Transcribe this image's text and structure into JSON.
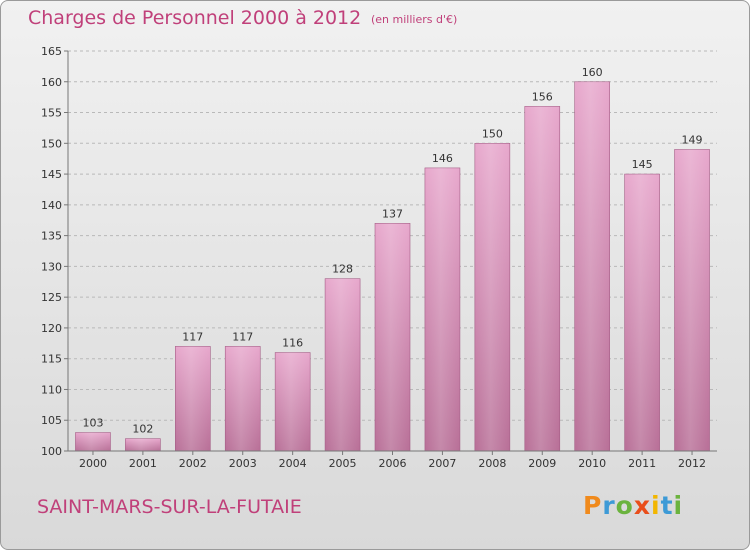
{
  "header": {
    "title": "Charges de Personnel 2000 à 2012",
    "unit": "(en milliers d'€)"
  },
  "footer": {
    "commune": "SAINT-MARS-SUR-LA-FUTAIE",
    "brand": "Proxiti"
  },
  "colors": {
    "accent": "#c0407a",
    "bar_top": "#e7a7cc",
    "bar_bottom": "#b86f97",
    "logo_letters": [
      "#f08a1c",
      "#3d9ad6",
      "#6bb33e",
      "#e94e1b",
      "#f2b600",
      "#3d9ad6",
      "#6bb33e"
    ]
  },
  "chart_data": {
    "type": "bar",
    "title": "Charges de Personnel 2000 à 2012",
    "subtitle": "(en milliers d'€)",
    "xlabel": "",
    "ylabel": "",
    "categories": [
      "2000",
      "2001",
      "2002",
      "2003",
      "2004",
      "2005",
      "2006",
      "2007",
      "2008",
      "2009",
      "2010",
      "2011",
      "2012"
    ],
    "values": [
      103,
      102,
      117,
      117,
      116,
      128,
      137,
      146,
      150,
      156,
      160,
      145,
      149
    ],
    "ylim": [
      100,
      165
    ],
    "yticks": [
      100,
      105,
      110,
      115,
      120,
      125,
      130,
      135,
      140,
      145,
      150,
      155,
      160,
      165
    ],
    "grid": true,
    "data_labels": true
  }
}
